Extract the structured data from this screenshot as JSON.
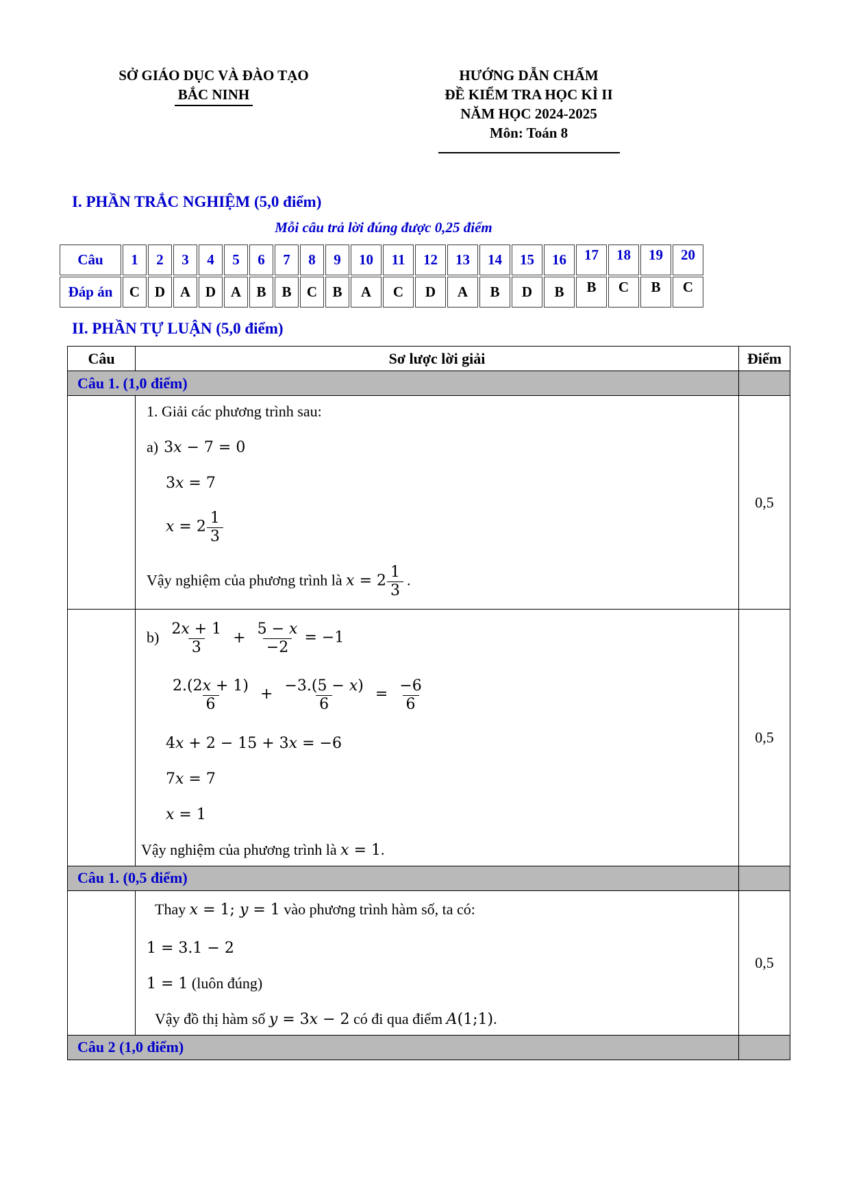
{
  "header": {
    "left": {
      "department": "SỞ GIÁO DỤC VÀ ĐÀO TẠO",
      "province": "BẮC NINH"
    },
    "right": {
      "title": "HƯỚNG DẪN CHẤM",
      "subtitle": "ĐỀ KIỂM TRA HỌC KÌ II",
      "year": "NĂM HỌC 2024-2025",
      "subject": "Môn: Toán 8"
    }
  },
  "section1": {
    "title": "I. PHẦN TRẮC NGHIỆM (5,0 điểm)",
    "note": "Mỗi câu trả lời đúng được 0,25 điểm",
    "table": {
      "row_label": "Câu",
      "answer_label": "Đáp án",
      "numbers": [
        "1",
        "2",
        "3",
        "4",
        "5",
        "6",
        "7",
        "8",
        "9",
        "10",
        "11",
        "12",
        "13",
        "14",
        "15",
        "16",
        "17",
        "18",
        "19",
        "20"
      ],
      "answers": [
        "C",
        "D",
        "A",
        "D",
        "A",
        "B",
        "B",
        "C",
        "B",
        "A",
        "C",
        "D",
        "A",
        "B",
        "D",
        "B",
        "B",
        "C",
        "B",
        "C"
      ]
    }
  },
  "section2": {
    "title": "II. PHẦN TỰ LUẬN (5,0 điểm)",
    "table": {
      "col_cau": "Câu",
      "col_solution": "Sơ lược lời giải",
      "col_diem": "Điểm",
      "band1": "Câu 1. (1,0 điểm)",
      "band2": "Câu 1. (0,5 điểm)",
      "band3": "Câu 2 (1,0 điểm)"
    },
    "block_a": {
      "intro": "1. Giải các phương trình sau:",
      "l1_label": "a)",
      "l1_math": "3x − 7 = 0",
      "l2_math": "3x = 7",
      "l3_math": "x = 2",
      "l3_frac": {
        "num": "1",
        "den": "3"
      },
      "l4_text": "Vậy nghiệm của phương trình là ",
      "l4_math": "x = 2",
      "l4_frac": {
        "num": "1",
        "den": "3"
      },
      "l4_end": ".",
      "score": "0,5"
    },
    "block_b": {
      "l1_label": "b)",
      "l1_frac1": {
        "num": "2x + 1",
        "den": "3"
      },
      "l1_op": "+",
      "l1_frac2": {
        "num": "5 − x",
        "den": "−2"
      },
      "l1_tail": "= −1",
      "l2_frac1": {
        "num": "2.(2x + 1)",
        "den": "6"
      },
      "l2_op": "+",
      "l2_frac2": {
        "num": "−3.(5 − x)",
        "den": "6"
      },
      "l2_eq": "=",
      "l2_frac3": {
        "num": "−6",
        "den": "6"
      },
      "l3_math": "4x + 2 − 15 + 3x = −6",
      "l4_math": "7x = 7",
      "l5_math": "x = 1",
      "l6_text": "Vậy nghiệm của phương trình là ",
      "l6_math": "x = 1",
      "l6_end": ".",
      "score": "0,5"
    },
    "block_c": {
      "l1_pre": "Thay ",
      "l1_math": "x = 1; y = 1",
      "l1_post": " vào phương trình hàm số, ta có:",
      "l2_math": "1 = 3.1 − 2",
      "l3_math": "1 = 1",
      "l3_post": " (luôn đúng)",
      "l4_pre": "Vậy đồ thị hàm số ",
      "l4_math": "y = 3x − 2",
      "l4_mid": " có đi qua điểm ",
      "l4_math2": "A(1;1)",
      "l4_end": ".",
      "score": "0,5"
    }
  }
}
